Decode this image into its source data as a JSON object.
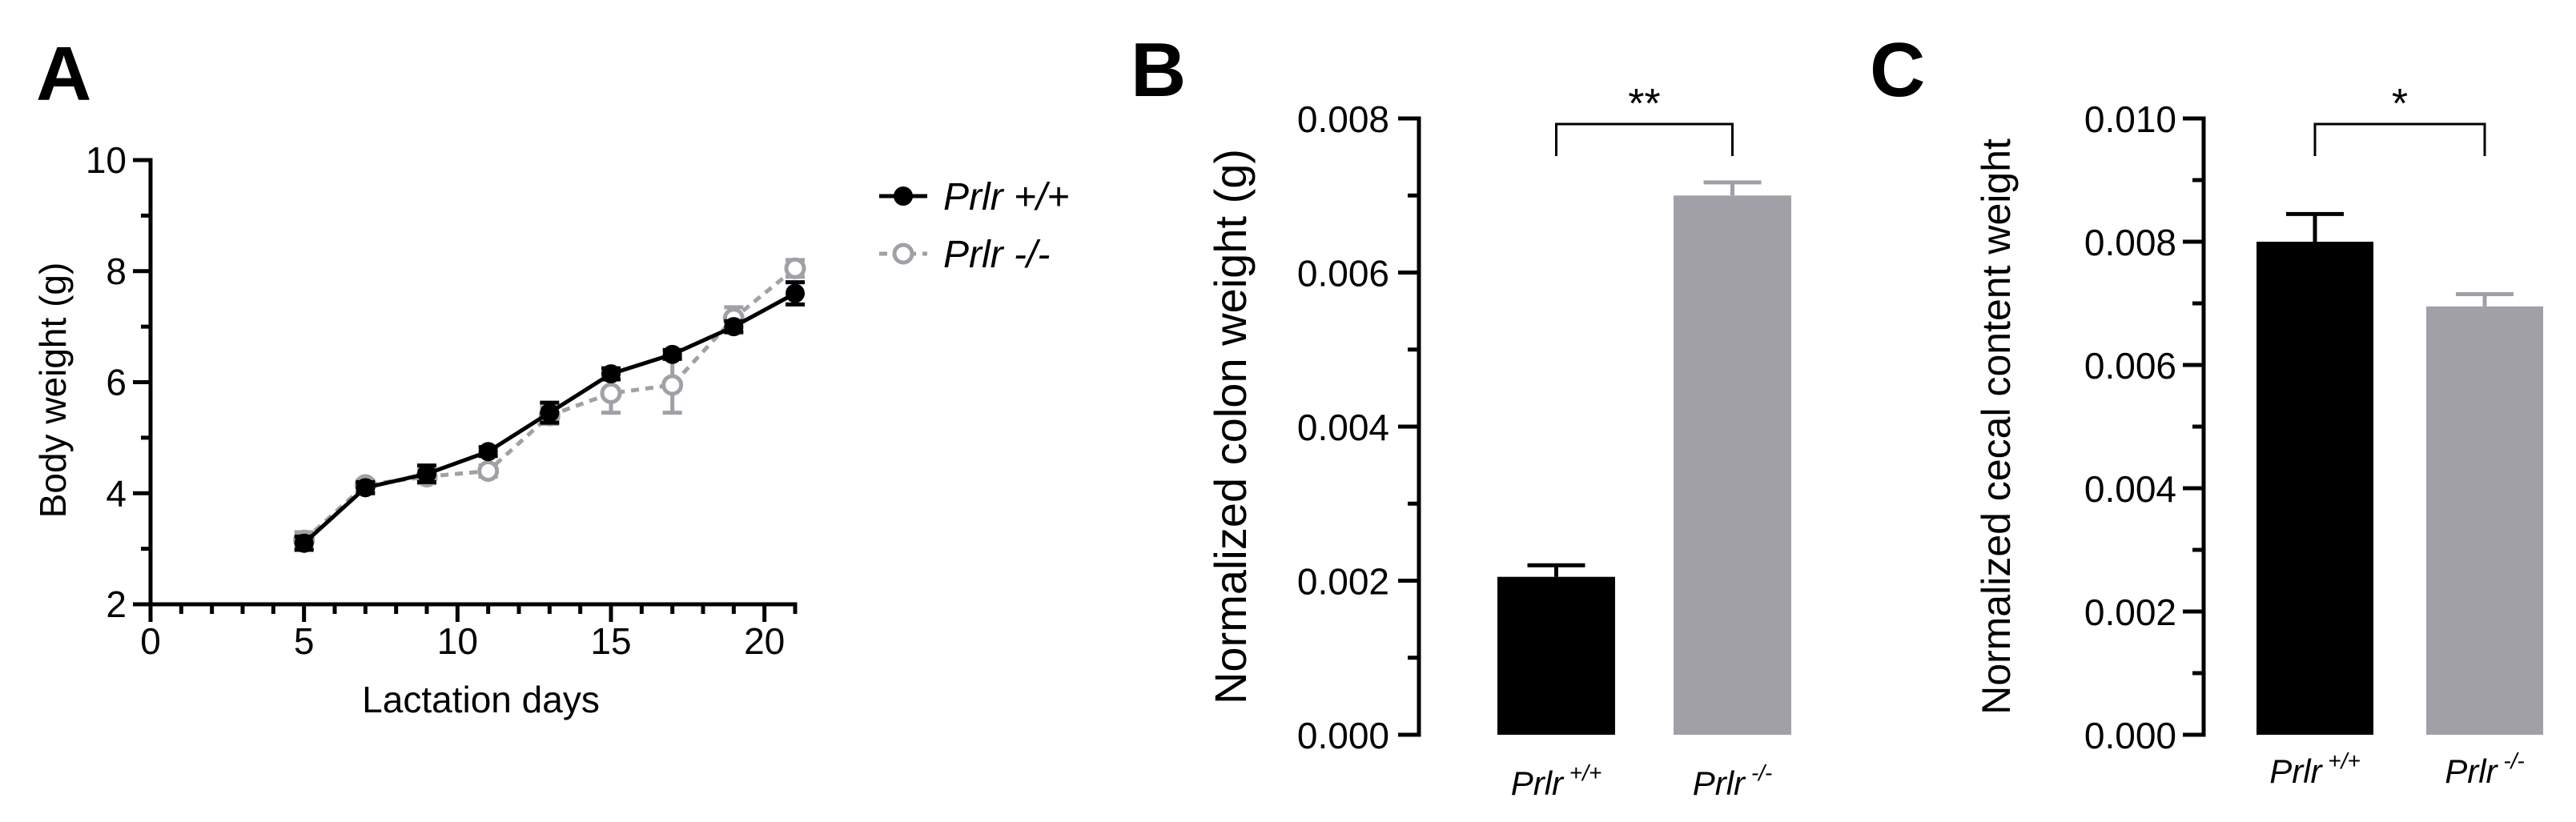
{
  "chart_data": [
    {
      "panel": "A",
      "type": "line",
      "xlabel": "Lactation days",
      "ylabel": "Body weight (g)",
      "xlim": [
        0,
        21
      ],
      "ylim": [
        2,
        10
      ],
      "xticks": [
        "0",
        "5",
        "10",
        "15",
        "20"
      ],
      "yticks": [
        "2",
        "4",
        "6",
        "8",
        "10"
      ],
      "legend_position": "right",
      "series": [
        {
          "name": "Prlr +/+",
          "name_base": "Prlr",
          "name_suffix": " +/+",
          "color": "#000000",
          "style": "solid",
          "x": [
            5,
            7,
            9,
            11,
            13,
            15,
            17,
            19,
            21
          ],
          "y": [
            3.1,
            4.1,
            4.35,
            4.75,
            5.45,
            6.15,
            6.5,
            7.0,
            7.6
          ],
          "err": [
            0.12,
            0.1,
            0.15,
            0.08,
            0.18,
            0.1,
            0.08,
            0.1,
            0.2
          ]
        },
        {
          "name": "Prlr -/-",
          "name_base": "Prlr",
          "name_suffix": " -/-",
          "color": "#a0a0a6",
          "style": "dashed",
          "x": [
            5,
            7,
            9,
            11,
            13,
            15,
            17,
            19,
            21
          ],
          "y": [
            3.15,
            4.15,
            4.3,
            4.4,
            5.4,
            5.8,
            5.95,
            7.15,
            8.05
          ],
          "err": [
            0.15,
            0.08,
            0.12,
            0.1,
            0.15,
            0.35,
            0.5,
            0.2,
            0.15
          ]
        }
      ]
    },
    {
      "panel": "B",
      "type": "bar",
      "ylabel": "Normalized colon weight (g)",
      "ylim": [
        0,
        0.008
      ],
      "yticks": [
        "0.000",
        "0.002",
        "0.004",
        "0.006",
        "0.008"
      ],
      "categories": [
        {
          "base": "Prlr",
          "sup": "+/+"
        },
        {
          "base": "Prlr",
          "sup": "-/-"
        }
      ],
      "values": [
        0.00205,
        0.007
      ],
      "errors": [
        0.00015,
        0.00017
      ],
      "colors": [
        "#000000",
        "#a0a0a6"
      ],
      "significance": "**"
    },
    {
      "panel": "C",
      "type": "bar",
      "ylabel": "Normalized cecal content weight",
      "ylim": [
        0,
        0.01
      ],
      "yticks": [
        "0.000",
        "0.002",
        "0.004",
        "0.006",
        "0.008",
        "0.010"
      ],
      "categories": [
        {
          "base": "Prlr",
          "sup": "+/+"
        },
        {
          "base": "Prlr",
          "sup": "-/-"
        }
      ],
      "values": [
        0.008,
        0.00695
      ],
      "errors": [
        0.00045,
        0.0002
      ],
      "colors": [
        "#000000",
        "#a0a0a6"
      ],
      "significance": "*"
    }
  ]
}
